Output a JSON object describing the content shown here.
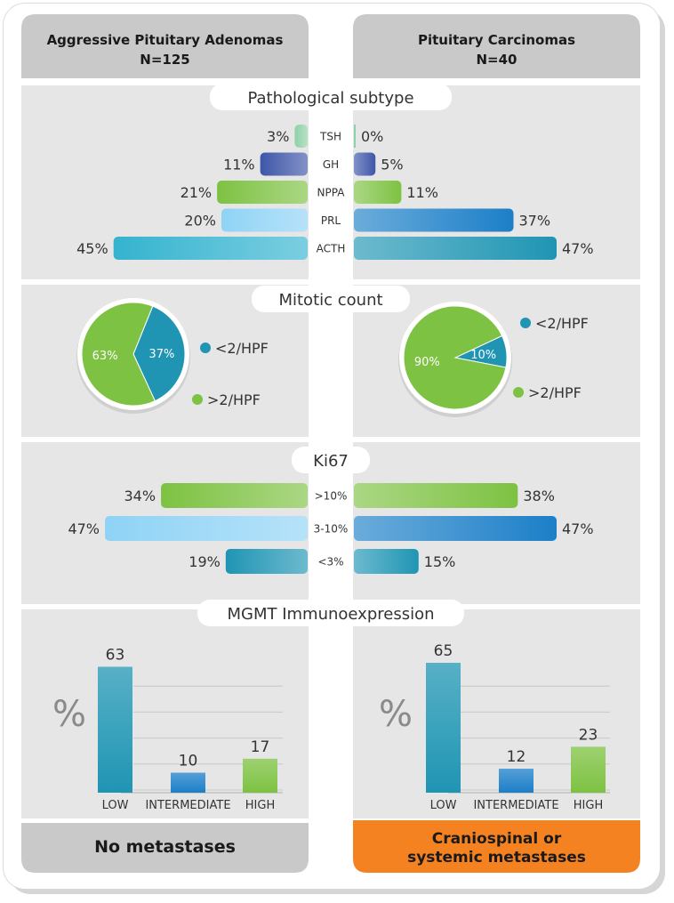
{
  "left_header": {
    "title": "Aggressive Pituitary Adenomas",
    "subtitle": "N=125"
  },
  "right_header": {
    "title": "Pituitary Carcinomas",
    "subtitle": "N=40"
  },
  "footer": {
    "left": "No metastases",
    "right_line1": "Craniospinal or",
    "right_line2": "systemic metastases"
  },
  "colors": {
    "panel": "#e6e6e7",
    "header": "#c9c9ca",
    "orange": "#f58220",
    "teal": "#1f95b3",
    "green": "#7dc242",
    "blue": "#1c7fc8",
    "light_blue": "#8fd3f5",
    "aqua": "#34b3cf",
    "navy": "#3e56a8",
    "mint": "#8ed1a8"
  },
  "chart_data": [
    {
      "type": "bar",
      "title": "Pathological subtype",
      "orientation": "horizontal-butterfly",
      "categories": [
        "TSH",
        "GH",
        "NPPA",
        "PRL",
        "ACTH"
      ],
      "series": [
        {
          "name": "Aggressive Pituitary Adenomas",
          "values": [
            3,
            11,
            21,
            20,
            45
          ],
          "labels": [
            "3%",
            "11%",
            "21%",
            "20%",
            "45%"
          ]
        },
        {
          "name": "Pituitary Carcinomas",
          "values": [
            0,
            5,
            11,
            37,
            47
          ],
          "labels": [
            "0%",
            "5%",
            "11%",
            "37%",
            "47%"
          ]
        }
      ],
      "xlim": [
        0,
        47
      ]
    },
    {
      "type": "pie",
      "title": "Mitotic count",
      "legend": [
        "<2/HPF",
        ">2/HPF"
      ],
      "series": [
        {
          "name": "Aggressive Pituitary Adenomas",
          "values": [
            37,
            63
          ],
          "labels": [
            "37%",
            "63%"
          ]
        },
        {
          "name": "Pituitary Carcinomas",
          "values": [
            10,
            90
          ],
          "labels": [
            "10%",
            "90%"
          ]
        }
      ]
    },
    {
      "type": "bar",
      "title": "Ki67",
      "orientation": "horizontal-butterfly",
      "categories": [
        ">10%",
        "3-10%",
        "<3%"
      ],
      "series": [
        {
          "name": "Aggressive Pituitary Adenomas",
          "values": [
            34,
            47,
            19
          ],
          "labels": [
            "34%",
            "47%",
            "19%"
          ]
        },
        {
          "name": "Pituitary Carcinomas",
          "values": [
            38,
            47,
            15
          ],
          "labels": [
            "38%",
            "47%",
            "15%"
          ]
        }
      ],
      "xlim": [
        0,
        47
      ]
    },
    {
      "type": "bar",
      "title": "MGMT Immunoexpression",
      "ylabel": "%",
      "categories": [
        "LOW",
        "INTERMEDIATE",
        "HIGH"
      ],
      "series": [
        {
          "name": "Aggressive Pituitary Adenomas",
          "values": [
            63,
            10,
            17
          ],
          "labels": [
            "63",
            "10",
            "17"
          ]
        },
        {
          "name": "Pituitary Carcinomas",
          "values": [
            65,
            12,
            23
          ],
          "labels": [
            "65",
            "12",
            "23"
          ]
        }
      ],
      "ylim": [
        0,
        65
      ]
    }
  ]
}
